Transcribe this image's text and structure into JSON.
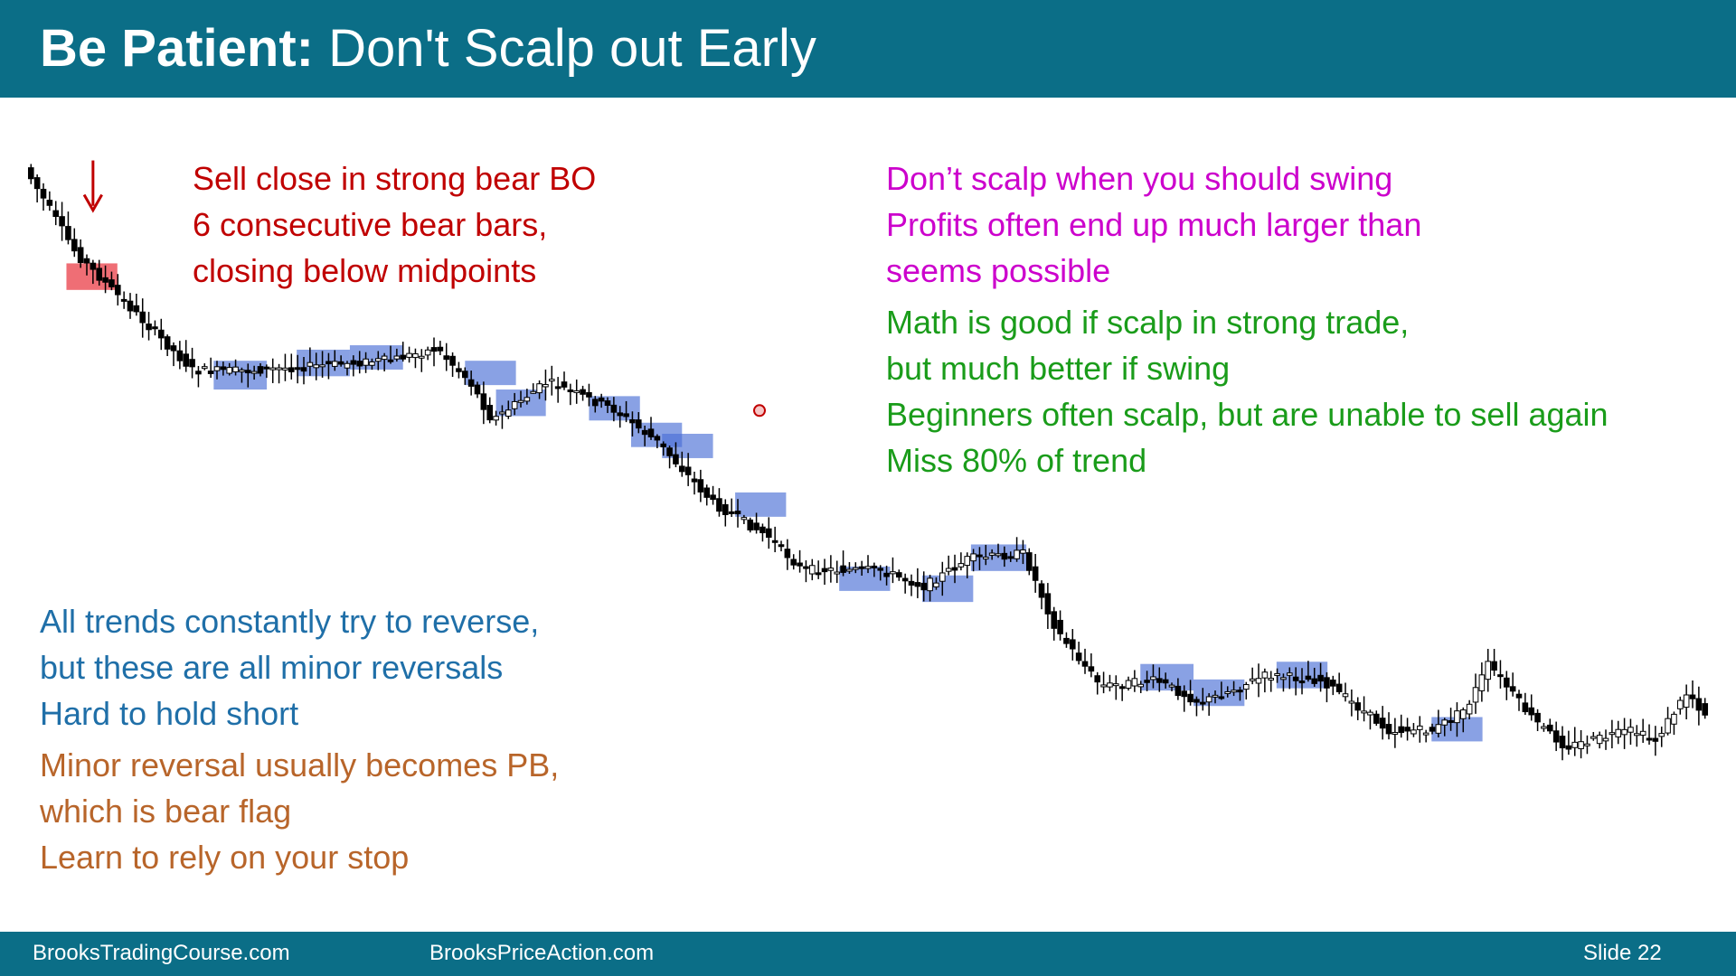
{
  "header": {
    "title_bold": "Be Patient:",
    "title_rest": "Don't Scalp out Early"
  },
  "notes": {
    "red": [
      "Sell close in strong bear BO",
      "6 consecutive bear bars,",
      "closing below midpoints"
    ],
    "magenta": [
      "Don’t scalp when you should swing",
      "Profits often end up much larger than",
      "seems possible"
    ],
    "green": [
      "Math is good if scalp in strong trade,",
      "but much better if swing",
      "Beginners often scalp, but are unable to sell again",
      "Miss 80% of trend"
    ],
    "blue": [
      "All trends constantly try to reverse,",
      "but these are all minor reversals",
      "Hard to hold short"
    ],
    "brown": [
      "Minor reversal usually becomes PB,",
      "which is bear flag",
      "Learn to rely on your stop"
    ]
  },
  "footer": {
    "left": "BrooksTradingCourse.com",
    "middle": "BrooksPriceAction.com",
    "slide": "Slide  22"
  }
}
